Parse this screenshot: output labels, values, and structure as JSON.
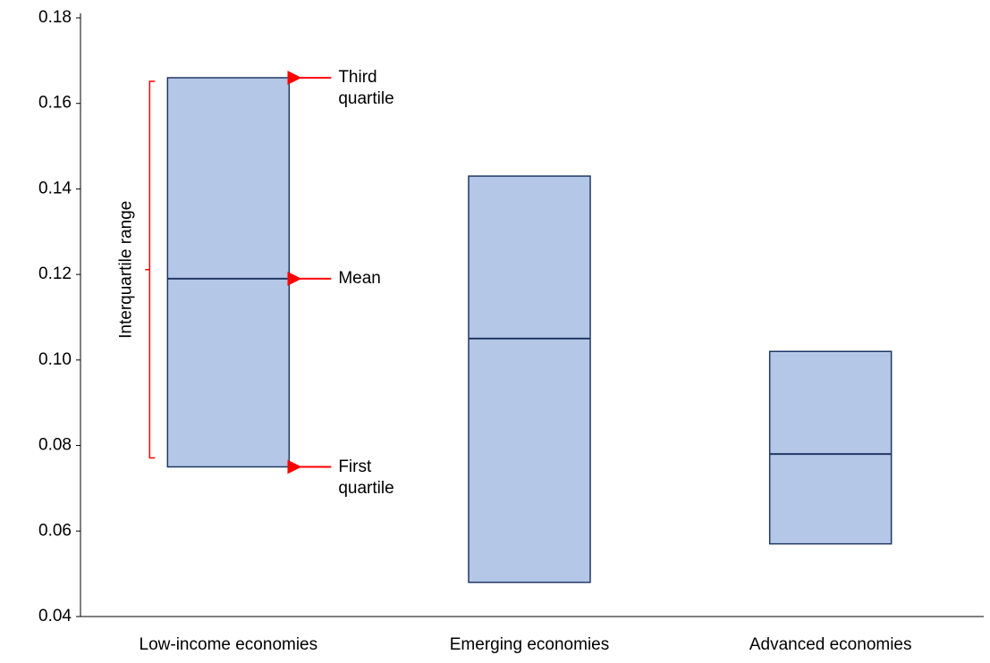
{
  "chart_data": {
    "type": "box",
    "categories": [
      "Low-income economies",
      "Emerging economies",
      "Advanced economies"
    ],
    "q1": [
      0.075,
      0.048,
      0.057
    ],
    "mean": [
      0.119,
      0.105,
      0.078
    ],
    "q3": [
      0.166,
      0.143,
      0.102
    ],
    "color": "#b4c7e7",
    "edge_color": "#203864",
    "ylim": [
      0.04,
      0.18
    ],
    "yticks": [
      0.04,
      0.06,
      0.08,
      {
        "value": 0.1,
        "label": "0.10"
      },
      0.12,
      0.14,
      0.16,
      0.18
    ],
    "annotations": {
      "third_quartile": "Third quartile",
      "mean": "Mean",
      "first_quartile": "First quartile",
      "interquartile_range": "Interquartile range"
    },
    "annotation_color": "#ff0000"
  }
}
